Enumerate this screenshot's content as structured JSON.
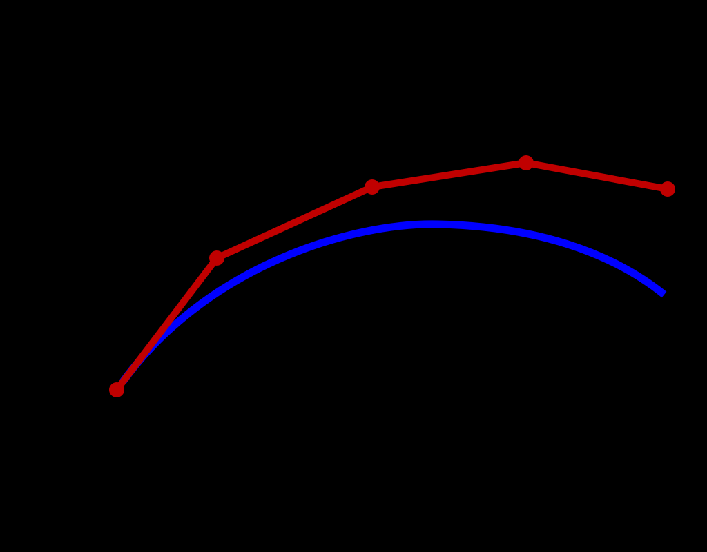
{
  "control_polygon": {
    "color": "#c00000"
  },
  "curve": {
    "color": "#0000ff"
  }
}
